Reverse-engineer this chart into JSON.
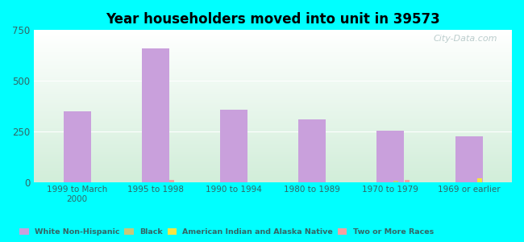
{
  "title": "Year householders moved into unit in 39573",
  "categories": [
    "1999 to March\n2000",
    "1995 to 1998",
    "1990 to 1994",
    "1980 to 1989",
    "1970 to 1979",
    "1969 or earlier"
  ],
  "series": {
    "White Non-Hispanic": [
      350,
      660,
      355,
      310,
      255,
      225
    ],
    "Black": [
      0,
      0,
      0,
      0,
      8,
      0
    ],
    "American Indian and Alaska Native": [
      0,
      0,
      0,
      0,
      0,
      18
    ],
    "Two or More Races": [
      0,
      12,
      0,
      0,
      12,
      0
    ]
  },
  "colors": {
    "White Non-Hispanic": "#c9a0dc",
    "Black": "#c8c87a",
    "American Indian and Alaska Native": "#f5e642",
    "Two or More Races": "#f4a0a0"
  },
  "ylim": [
    0,
    750
  ],
  "yticks": [
    0,
    250,
    500,
    750
  ],
  "background_outer": "#00ffff",
  "watermark": "City-Data.com",
  "bar_width": 0.35,
  "small_bar_width": 0.06
}
